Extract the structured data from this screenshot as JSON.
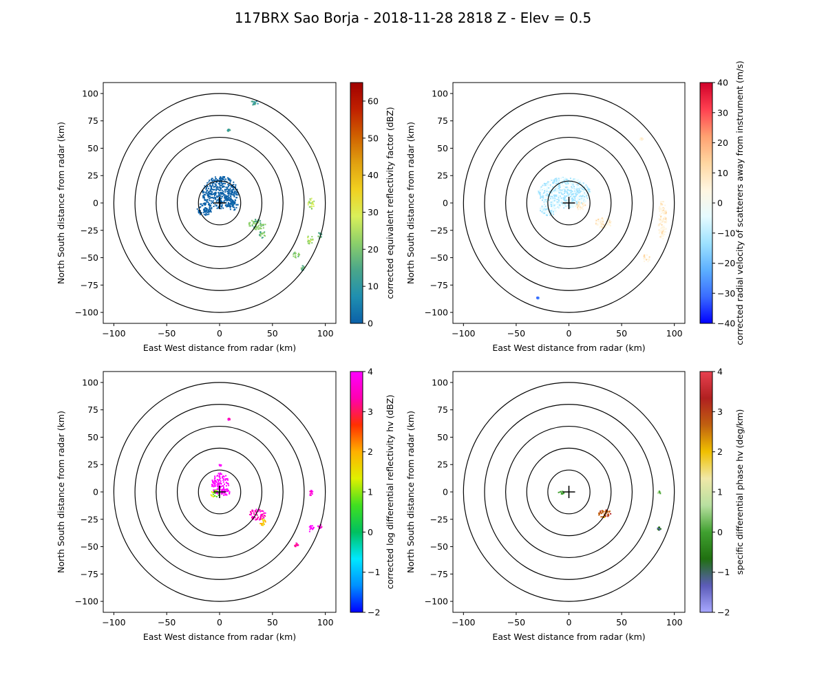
{
  "title": "117BRX Sao Borja - 2018-11-28 2818 Z -  Elev = 0.5",
  "chart_data": [
    {
      "type": "heatmap",
      "panel": "top-left",
      "field": "reflectivity",
      "xlabel": "East West distance from radar (km)",
      "ylabel": "North South distance from radar (km)",
      "xlim": [
        -110,
        110
      ],
      "ylim": [
        -110,
        110
      ],
      "xticks": [
        -100,
        -50,
        0,
        50,
        100
      ],
      "yticks": [
        -100,
        -75,
        -50,
        -25,
        0,
        25,
        50,
        75,
        100
      ],
      "range_rings_km": [
        20,
        40,
        60,
        80,
        100
      ],
      "colorbar": {
        "label": "corrected equivalent reflectivity factor (dBZ)",
        "range": [
          0,
          65
        ],
        "ticks": [
          0,
          10,
          20,
          30,
          40,
          50,
          60
        ],
        "colors": [
          "#0b60a8",
          "#1f8fb0",
          "#4aa68a",
          "#8ccf6a",
          "#d9ef5a",
          "#f0d020",
          "#e0a010",
          "#d06000",
          "#c02000",
          "#a00000"
        ]
      },
      "echoes": [
        {
          "x": 0,
          "y": 10,
          "rx": 17,
          "ry": 15,
          "value": 2
        },
        {
          "x": -15,
          "y": -5,
          "rx": 7,
          "ry": 6,
          "value": 2
        },
        {
          "x": 12,
          "y": -2,
          "rx": 5,
          "ry": 4,
          "value": 3
        },
        {
          "x": 35,
          "y": -19,
          "rx": 8,
          "ry": 5,
          "value": 22
        },
        {
          "x": 40,
          "y": -28,
          "rx": 3,
          "ry": 4,
          "value": 20
        },
        {
          "x": 86,
          "y": 0,
          "rx": 3,
          "ry": 5,
          "value": 25
        },
        {
          "x": 85,
          "y": -33,
          "rx": 3,
          "ry": 4,
          "value": 24
        },
        {
          "x": 94,
          "y": -29,
          "rx": 2,
          "ry": 3,
          "value": 20
        },
        {
          "x": 72,
          "y": -47,
          "rx": 3,
          "ry": 3,
          "value": 22
        },
        {
          "x": 78,
          "y": -59,
          "rx": 2,
          "ry": 3,
          "value": 18
        },
        {
          "x": 32,
          "y": 92,
          "rx": 4,
          "ry": 2,
          "value": 15
        },
        {
          "x": 8,
          "y": 67,
          "rx": 1.5,
          "ry": 1,
          "value": 14
        }
      ]
    },
    {
      "type": "heatmap",
      "panel": "top-right",
      "field": "velocity",
      "xlabel": "East West distance from radar (km)",
      "ylabel": "North South distance from radar (km)",
      "xlim": [
        -110,
        110
      ],
      "ylim": [
        -110,
        110
      ],
      "xticks": [
        -100,
        -50,
        0,
        50,
        100
      ],
      "yticks": [
        -100,
        -75,
        -50,
        -25,
        0,
        25,
        50,
        75,
        100
      ],
      "range_rings_km": [
        20,
        40,
        60,
        80,
        100
      ],
      "colorbar": {
        "label": "corrected radial velocity of scatterers away from instrument (m/s)",
        "range": [
          -40,
          40
        ],
        "ticks": [
          -40,
          -30,
          -20,
          -10,
          0,
          10,
          20,
          30,
          40
        ],
        "colors": [
          "#0000ff",
          "#3a6cff",
          "#5db0ff",
          "#9ee2ff",
          "#e6fbff",
          "#fff5e0",
          "#ffd6a0",
          "#ffa070",
          "#ff4050",
          "#d0002a"
        ]
      },
      "echoes": [
        {
          "x": -5,
          "y": 10,
          "rx": 25,
          "ry": 14,
          "value": -8
        },
        {
          "x": -20,
          "y": -5,
          "rx": 8,
          "ry": 6,
          "value": -7
        },
        {
          "x": 10,
          "y": -2,
          "rx": 5,
          "ry": 4,
          "value": 6
        },
        {
          "x": 32,
          "y": -18,
          "rx": 8,
          "ry": 5,
          "value": 6
        },
        {
          "x": 88,
          "y": -15,
          "rx": 4,
          "ry": 18,
          "value": 5
        },
        {
          "x": 73,
          "y": -50,
          "rx": 3,
          "ry": 4,
          "value": 5
        },
        {
          "x": 68,
          "y": 59,
          "rx": 1.5,
          "ry": 1.5,
          "value": 8
        },
        {
          "x": -30,
          "y": -86,
          "rx": 1,
          "ry": 1,
          "value": -25
        }
      ]
    },
    {
      "type": "heatmap",
      "panel": "bottom-left",
      "field": "differential_reflectivity",
      "xlabel": "East West distance from radar (km)",
      "ylabel": "North South distance from radar (km)",
      "xlim": [
        -110,
        110
      ],
      "ylim": [
        -110,
        110
      ],
      "xticks": [
        -100,
        -50,
        0,
        50,
        100
      ],
      "yticks": [
        -100,
        -75,
        -50,
        -25,
        0,
        25,
        50,
        75,
        100
      ],
      "range_rings_km": [
        20,
        40,
        60,
        80,
        100
      ],
      "colorbar": {
        "label": "corrected log differential reflectivity hv (dBZ)",
        "range": [
          -2,
          4
        ],
        "ticks": [
          -2,
          -1,
          0,
          1,
          2,
          3,
          4
        ],
        "colors": [
          "#0000ff",
          "#0090ff",
          "#00e8ff",
          "#00c060",
          "#40e020",
          "#e0f000",
          "#ffb000",
          "#ff3000",
          "#ff00b0",
          "#ff00ff"
        ]
      },
      "echoes": [
        {
          "x": 0,
          "y": 8,
          "rx": 8,
          "ry": 10,
          "value": 3.9
        },
        {
          "x": -5,
          "y": -1,
          "rx": 4,
          "ry": 3,
          "value": 1.2
        },
        {
          "x": 5,
          "y": 0,
          "rx": 4,
          "ry": 3,
          "value": 3.8
        },
        {
          "x": 35,
          "y": -20,
          "rx": 8,
          "ry": 5,
          "value": 3.3
        },
        {
          "x": 40,
          "y": -27,
          "rx": 3,
          "ry": 3,
          "value": 1.8
        },
        {
          "x": 86,
          "y": 0,
          "rx": 2,
          "ry": 3,
          "value": 3.2
        },
        {
          "x": 86,
          "y": -33,
          "rx": 3,
          "ry": 3,
          "value": 3.9
        },
        {
          "x": 94,
          "y": -31,
          "rx": 2,
          "ry": 2,
          "value": 3.5
        },
        {
          "x": 72,
          "y": -48,
          "rx": 2,
          "ry": 2,
          "value": 3.0
        },
        {
          "x": 8,
          "y": 67,
          "rx": 1.5,
          "ry": 0.8,
          "value": 3.2
        },
        {
          "x": 0,
          "y": 25,
          "rx": 1,
          "ry": 1,
          "value": 3.9
        }
      ]
    },
    {
      "type": "heatmap",
      "panel": "bottom-right",
      "field": "specific_differential_phase",
      "xlabel": "East West distance from radar (km)",
      "ylabel": "North South distance from radar (km)",
      "xlim": [
        -110,
        110
      ],
      "ylim": [
        -110,
        110
      ],
      "xticks": [
        -100,
        -50,
        0,
        50,
        100
      ],
      "yticks": [
        -100,
        -75,
        -50,
        -25,
        0,
        25,
        50,
        75,
        100
      ],
      "range_rings_km": [
        20,
        40,
        60,
        80,
        100
      ],
      "colorbar": {
        "label": "specific differential phase hv (deg/km)",
        "range": [
          -2,
          4
        ],
        "ticks": [
          -2,
          -1,
          0,
          1,
          2,
          3,
          4
        ],
        "colors": [
          "#a8a8ff",
          "#5c5cb8",
          "#207010",
          "#40a030",
          "#b8e0a0",
          "#f0e8a8",
          "#f0c000",
          "#c06010",
          "#b02020",
          "#e84050"
        ]
      },
      "echoes": [
        {
          "x": -8,
          "y": 0,
          "rx": 3,
          "ry": 1.5,
          "value": 0.2
        },
        {
          "x": 33,
          "y": -19,
          "rx": 6,
          "ry": 4,
          "value": 2.5
        },
        {
          "x": 85,
          "y": 0,
          "rx": 2,
          "ry": 1.5,
          "value": 0.5
        },
        {
          "x": 85,
          "y": -33,
          "rx": 1.5,
          "ry": 1.5,
          "value": -0.8
        }
      ]
    }
  ]
}
